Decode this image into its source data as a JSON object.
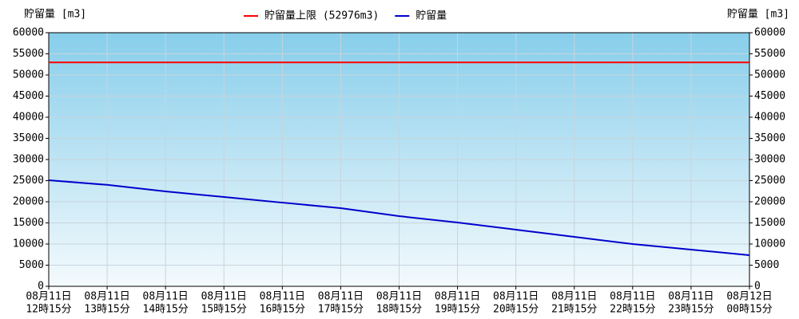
{
  "chart_data": {
    "type": "line",
    "y_label": "貯留量 [m3]",
    "y2_label": "貯留量 [m3]",
    "categories": [
      [
        "08月11日",
        "12時15分"
      ],
      [
        "08月11日",
        "13時15分"
      ],
      [
        "08月11日",
        "14時15分"
      ],
      [
        "08月11日",
        "15時15分"
      ],
      [
        "08月11日",
        "16時15分"
      ],
      [
        "08月11日",
        "17時15分"
      ],
      [
        "08月11日",
        "18時15分"
      ],
      [
        "08月11日",
        "19時15分"
      ],
      [
        "08月11日",
        "20時15分"
      ],
      [
        "08月11日",
        "21時15分"
      ],
      [
        "08月11日",
        "22時15分"
      ],
      [
        "08月11日",
        "23時15分"
      ],
      [
        "08月12日",
        "00時15分"
      ]
    ],
    "series": [
      {
        "name": "貯留量上限 (52976m3)",
        "color": "#ff0000",
        "values": [
          52976,
          52976,
          52976,
          52976,
          52976,
          52976,
          52976,
          52976,
          52976,
          52976,
          52976,
          52976,
          52976
        ]
      },
      {
        "name": "貯留量",
        "color": "#0000cc",
        "values": [
          25100,
          24000,
          22450,
          21130,
          19800,
          18490,
          16600,
          15100,
          13400,
          11700,
          10000,
          8680,
          7360
        ]
      }
    ],
    "ylim": [
      0,
      60000
    ],
    "yticks": [
      0,
      5000,
      10000,
      15000,
      20000,
      25000,
      30000,
      35000,
      40000,
      45000,
      50000,
      55000,
      60000
    ],
    "y2lim": [
      0,
      60000
    ],
    "y2ticks": [
      0,
      5000,
      10000,
      15000,
      20000,
      25000,
      30000,
      35000,
      40000,
      45000,
      50000,
      55000,
      60000
    ],
    "grid": true
  }
}
